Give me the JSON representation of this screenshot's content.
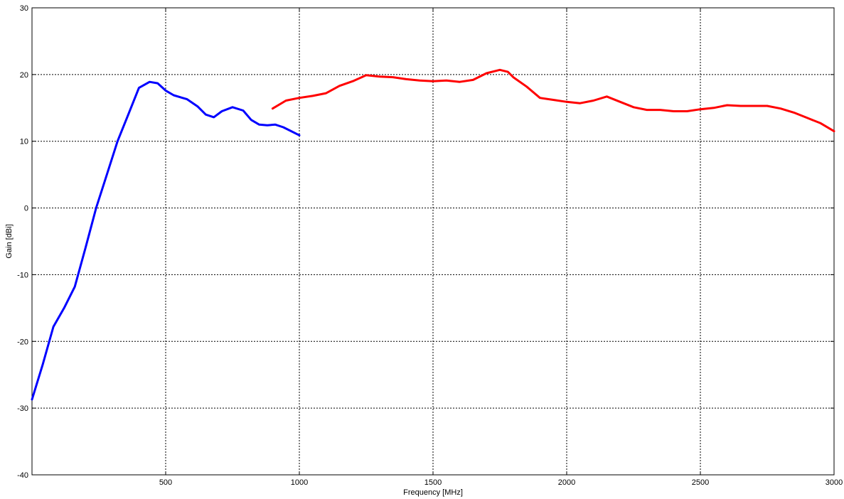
{
  "chart_data": {
    "type": "line",
    "title": "",
    "xlabel": "Frequency [MHz]",
    "ylabel": "Gain [dBi]",
    "xlim": [
      0,
      3000
    ],
    "ylim": [
      -40,
      30
    ],
    "grid": true,
    "x_ticks": [
      500,
      1000,
      1500,
      2000,
      2500,
      3000
    ],
    "x_tick_labels": [
      "500",
      "1000",
      "1500",
      "2000",
      "2500",
      "3000"
    ],
    "y_ticks": [
      -40,
      -30,
      -20,
      -10,
      0,
      10,
      20,
      30
    ],
    "y_tick_labels": [
      "-40",
      "-30",
      "-20",
      "-10",
      "0",
      "10",
      "20",
      "30"
    ],
    "series": [
      {
        "color": "#0000ff",
        "x": [
          0,
          40,
          80,
          120,
          160,
          200,
          240,
          280,
          320,
          360,
          400,
          440,
          470,
          500,
          530,
          580,
          620,
          650,
          680,
          710,
          750,
          790,
          820,
          850,
          880,
          910,
          940,
          970,
          1000
        ],
        "y": [
          -28.7,
          -23.5,
          -17.8,
          -15,
          -11.8,
          -6,
          0,
          5,
          10,
          14,
          18,
          18.9,
          18.7,
          17.6,
          16.9,
          16.3,
          15.2,
          14,
          13.6,
          14.5,
          15.1,
          14.6,
          13.2,
          12.5,
          12.4,
          12.5,
          12.1,
          11.5,
          10.9
        ]
      },
      {
        "color": "#ff0000",
        "x": [
          900,
          950,
          1000,
          1050,
          1100,
          1150,
          1200,
          1250,
          1300,
          1350,
          1400,
          1450,
          1500,
          1550,
          1600,
          1650,
          1700,
          1750,
          1780,
          1800,
          1850,
          1900,
          1950,
          2000,
          2050,
          2100,
          2150,
          2200,
          2250,
          2300,
          2350,
          2400,
          2450,
          2500,
          2550,
          2600,
          2650,
          2700,
          2750,
          2800,
          2850,
          2900,
          2950,
          3000
        ],
        "y": [
          14.9,
          16.1,
          16.5,
          16.8,
          17.2,
          18.3,
          19,
          19.9,
          19.7,
          19.6,
          19.3,
          19.1,
          19,
          19.1,
          18.9,
          19.2,
          20.2,
          20.7,
          20.4,
          19.6,
          18.2,
          16.5,
          16.2,
          15.9,
          15.7,
          16.1,
          16.7,
          15.9,
          15.1,
          14.7,
          14.7,
          14.5,
          14.5,
          14.8,
          15,
          15.4,
          15.3,
          15.3,
          15.3,
          14.9,
          14.3,
          13.5,
          12.7,
          11.5
        ]
      }
    ]
  }
}
